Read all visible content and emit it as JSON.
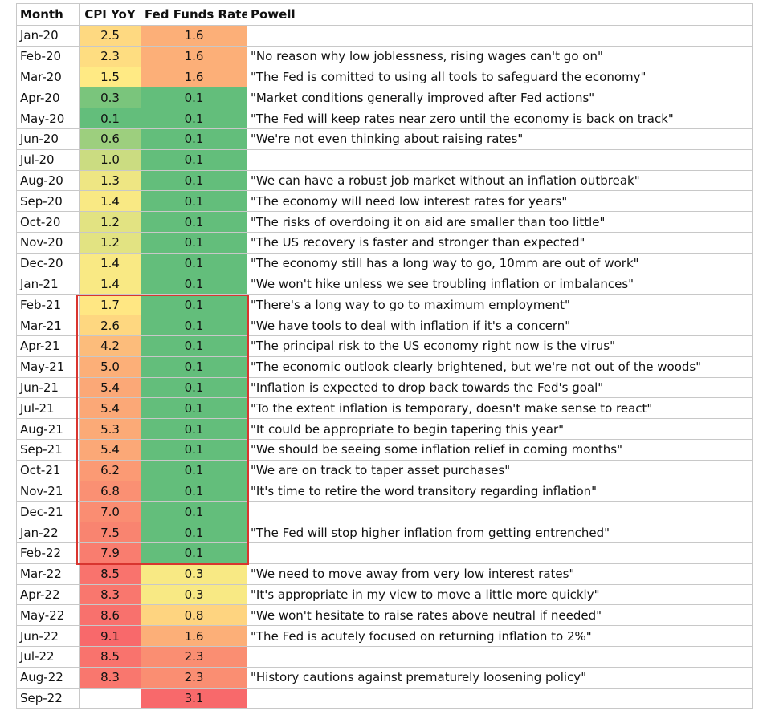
{
  "table": {
    "headers": [
      "Month",
      "CPI YoY",
      "Fed Funds Rate",
      "Powell"
    ],
    "rows": [
      {
        "month": "Jan-20",
        "cpi": "2.5",
        "fed": "1.6",
        "quote": null
      },
      {
        "month": "Feb-20",
        "cpi": "2.3",
        "fed": "1.6",
        "quote": "\"No reason why low joblessness, rising wages can't go on\""
      },
      {
        "month": "Mar-20",
        "cpi": "1.5",
        "fed": "1.6",
        "quote": "\"The Fed is comitted to using all tools to safeguard the economy\""
      },
      {
        "month": "Apr-20",
        "cpi": "0.3",
        "fed": "0.1",
        "quote": "\"Market conditions generally improved after Fed actions\""
      },
      {
        "month": "May-20",
        "cpi": "0.1",
        "fed": "0.1",
        "quote": "\"The Fed will keep rates near zero until the economy is back on track\""
      },
      {
        "month": "Jun-20",
        "cpi": "0.6",
        "fed": "0.1",
        "quote": "\"We're not even thinking about raising rates\""
      },
      {
        "month": "Jul-20",
        "cpi": "1.0",
        "fed": "0.1",
        "quote": null
      },
      {
        "month": "Aug-20",
        "cpi": "1.3",
        "fed": "0.1",
        "quote": "\"We can have a robust job market without an inflation outbreak\""
      },
      {
        "month": "Sep-20",
        "cpi": "1.4",
        "fed": "0.1",
        "quote": "\"The economy will need low interest rates for years\""
      },
      {
        "month": "Oct-20",
        "cpi": "1.2",
        "fed": "0.1",
        "quote": "\"The risks of overdoing it on aid are smaller than too little\""
      },
      {
        "month": "Nov-20",
        "cpi": "1.2",
        "fed": "0.1",
        "quote": "\"The US recovery is faster and stronger than expected\""
      },
      {
        "month": "Dec-20",
        "cpi": "1.4",
        "fed": "0.1",
        "quote": "\"The economy still has a long way to go, 10mm are out of work\""
      },
      {
        "month": "Jan-21",
        "cpi": "1.4",
        "fed": "0.1",
        "quote": "\"We won't hike unless we see troubling inflation or imbalances\""
      },
      {
        "month": "Feb-21",
        "cpi": "1.7",
        "fed": "0.1",
        "quote": "\"There's a long way to go to maximum employment\""
      },
      {
        "month": "Mar-21",
        "cpi": "2.6",
        "fed": "0.1",
        "quote": "\"We have tools to deal with inflation if it's a concern\""
      },
      {
        "month": "Apr-21",
        "cpi": "4.2",
        "fed": "0.1",
        "quote": "\"The principal risk to the US economy right now is the virus\""
      },
      {
        "month": "May-21",
        "cpi": "5.0",
        "fed": "0.1",
        "quote": "\"The economic outlook clearly brightened, but we're not out of the woods\""
      },
      {
        "month": "Jun-21",
        "cpi": "5.4",
        "fed": "0.1",
        "quote": "\"Inflation is expected to drop back towards the Fed's goal\""
      },
      {
        "month": "Jul-21",
        "cpi": "5.4",
        "fed": "0.1",
        "quote": "\"To the extent inflation is temporary, doesn't make sense to react\""
      },
      {
        "month": "Aug-21",
        "cpi": "5.3",
        "fed": "0.1",
        "quote": "\"It could be appropriate to begin tapering this year\""
      },
      {
        "month": "Sep-21",
        "cpi": "5.4",
        "fed": "0.1",
        "quote": "\"We should be seeing some inflation relief in coming months\""
      },
      {
        "month": "Oct-21",
        "cpi": "6.2",
        "fed": "0.1",
        "quote": "\"We are on track to taper asset purchases\""
      },
      {
        "month": "Nov-21",
        "cpi": "6.8",
        "fed": "0.1",
        "quote": "\"It's time to retire the word transitory regarding inflation\""
      },
      {
        "month": "Dec-21",
        "cpi": "7.0",
        "fed": "0.1",
        "quote": null
      },
      {
        "month": "Jan-22",
        "cpi": "7.5",
        "fed": "0.1",
        "quote": "\"The Fed will stop higher inflation from getting entrenched\""
      },
      {
        "month": "Feb-22",
        "cpi": "7.9",
        "fed": "0.1",
        "quote": null
      },
      {
        "month": "Mar-22",
        "cpi": "8.5",
        "fed": "0.3",
        "quote": "\"We need to move away from very low interest rates\""
      },
      {
        "month": "Apr-22",
        "cpi": "8.3",
        "fed": "0.3",
        "quote": "\"It's appropriate in my view to move a little more quickly\""
      },
      {
        "month": "May-22",
        "cpi": "8.6",
        "fed": "0.8",
        "quote": "\"We won't hesitate to raise rates above neutral if needed\""
      },
      {
        "month": "Jun-22",
        "cpi": "9.1",
        "fed": "1.6",
        "quote": "\"The Fed is acutely focused on returning inflation to 2%\""
      },
      {
        "month": "Jul-22",
        "cpi": "8.5",
        "fed": "2.3",
        "quote": null
      },
      {
        "month": "Aug-22",
        "cpi": "8.3",
        "fed": "2.3",
        "quote": "\"History cautions against prematurely loosening policy\""
      },
      {
        "month": "Sep-22",
        "cpi": null,
        "fed": "3.1",
        "quote": null
      }
    ]
  }
}
